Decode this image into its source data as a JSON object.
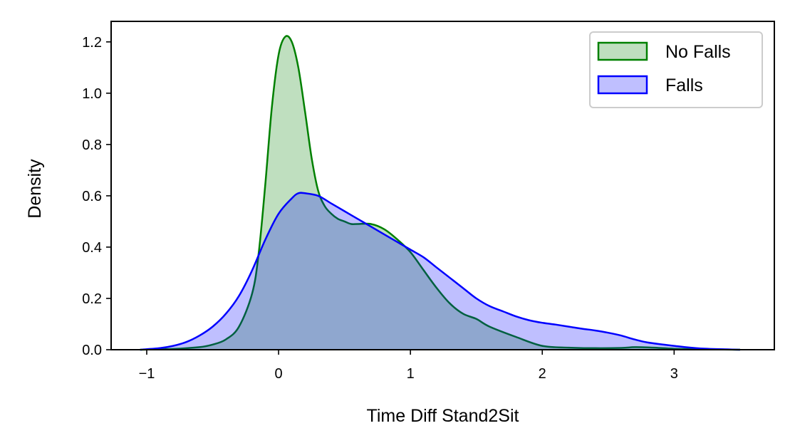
{
  "chart_data": {
    "type": "area",
    "title": "",
    "xlabel": "Time Diff Stand2Sit",
    "ylabel": "Density",
    "xlim": [
      -1.27,
      3.76
    ],
    "ylim": [
      0,
      1.28
    ],
    "xticks": [
      -1,
      0,
      1,
      2,
      3
    ],
    "xtick_labels": [
      "−1",
      "0",
      "1",
      "2",
      "3"
    ],
    "yticks": [
      0,
      0.2,
      0.4,
      0.6,
      0.8,
      1.0,
      1.2
    ],
    "ytick_labels": [
      "0.0",
      "0.2",
      "0.4",
      "0.6",
      "0.8",
      "1.0",
      "1.2"
    ],
    "grid": false,
    "legend_position": "top-right",
    "series": [
      {
        "name": "No Falls",
        "color": "#008000",
        "fill": "#008000",
        "fill_opacity": 0.25,
        "x": [
          -1.05,
          -0.8,
          -0.6,
          -0.5,
          -0.4,
          -0.3,
          -0.2,
          -0.15,
          -0.1,
          -0.05,
          0.0,
          0.05,
          0.1,
          0.15,
          0.2,
          0.25,
          0.3,
          0.35,
          0.4,
          0.45,
          0.5,
          0.55,
          0.6,
          0.7,
          0.8,
          0.9,
          1.0,
          1.1,
          1.2,
          1.3,
          1.4,
          1.5,
          1.6,
          1.8,
          2.0,
          2.2,
          2.4,
          2.6,
          2.7,
          2.8,
          3.0,
          3.2,
          3.5
        ],
        "y": [
          0.0,
          0.003,
          0.01,
          0.02,
          0.04,
          0.09,
          0.22,
          0.38,
          0.65,
          0.95,
          1.15,
          1.22,
          1.2,
          1.1,
          0.93,
          0.75,
          0.62,
          0.56,
          0.53,
          0.51,
          0.5,
          0.49,
          0.49,
          0.49,
          0.47,
          0.43,
          0.38,
          0.31,
          0.24,
          0.18,
          0.14,
          0.12,
          0.09,
          0.05,
          0.015,
          0.008,
          0.006,
          0.007,
          0.01,
          0.009,
          0.004,
          0.002,
          0.0
        ]
      },
      {
        "name": "Falls",
        "color": "#0000ff",
        "fill": "#0000ff",
        "fill_opacity": 0.25,
        "x": [
          -1.05,
          -0.9,
          -0.8,
          -0.7,
          -0.6,
          -0.5,
          -0.4,
          -0.3,
          -0.2,
          -0.1,
          0.0,
          0.1,
          0.15,
          0.2,
          0.3,
          0.4,
          0.5,
          0.6,
          0.7,
          0.8,
          0.9,
          1.0,
          1.1,
          1.2,
          1.3,
          1.4,
          1.5,
          1.6,
          1.7,
          1.8,
          1.9,
          2.0,
          2.1,
          2.2,
          2.3,
          2.4,
          2.5,
          2.6,
          2.7,
          2.8,
          3.0,
          3.2,
          3.5
        ],
        "y": [
          0.0,
          0.006,
          0.015,
          0.03,
          0.055,
          0.09,
          0.14,
          0.21,
          0.31,
          0.43,
          0.53,
          0.59,
          0.61,
          0.61,
          0.6,
          0.57,
          0.54,
          0.51,
          0.48,
          0.45,
          0.42,
          0.39,
          0.36,
          0.32,
          0.28,
          0.24,
          0.2,
          0.17,
          0.15,
          0.13,
          0.115,
          0.105,
          0.098,
          0.09,
          0.082,
          0.075,
          0.066,
          0.055,
          0.04,
          0.028,
          0.015,
          0.005,
          0.0
        ]
      }
    ]
  }
}
